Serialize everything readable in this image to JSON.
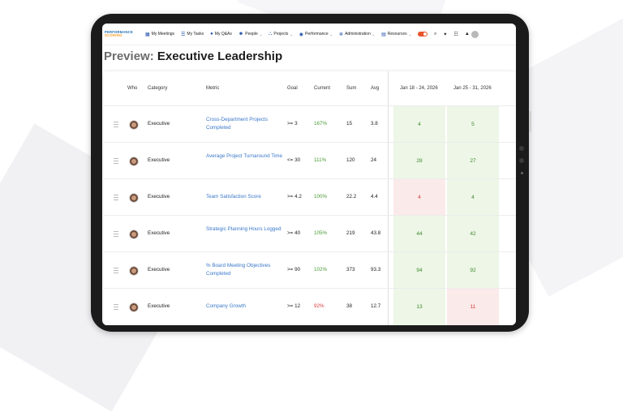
{
  "nav": {
    "logo_top": "PERFORMANCE",
    "logo_bottom": "SCORING",
    "items": [
      {
        "icon": "calendar-icon",
        "glyph": "▦",
        "label": "My Meetings"
      },
      {
        "icon": "list-icon",
        "glyph": "☰",
        "label": "My Tasks"
      },
      {
        "icon": "pin-icon",
        "glyph": "●",
        "label": "My Q&As"
      },
      {
        "icon": "people-icon",
        "glyph": "☻",
        "label": "People"
      },
      {
        "icon": "projects-icon",
        "glyph": "⛬",
        "label": "Projects"
      },
      {
        "icon": "performance-icon",
        "glyph": "◉",
        "label": "Performance"
      },
      {
        "icon": "gear-icon",
        "glyph": "✲",
        "label": "Administration"
      },
      {
        "icon": "resources-icon",
        "glyph": "▤",
        "label": "Resources"
      }
    ]
  },
  "page": {
    "title_prefix": "Preview:",
    "title": "Executive Leadership"
  },
  "table": {
    "headers": {
      "who": "Who",
      "category": "Category",
      "metric": "Metric",
      "goal": "Goal",
      "current": "Current",
      "sum": "Sum",
      "avg": "Avg",
      "week1": "Jan 18 - 24, 2026",
      "week2": "Jan 25 - 31, 2026"
    },
    "rows": [
      {
        "category": "Executive",
        "metric": "Cross-Department Projects Completed",
        "goal": ">= 3",
        "current": "167%",
        "current_status": "green",
        "sum": "15",
        "avg": "3.8",
        "w1": "4",
        "w1_status": "green",
        "w2": "5",
        "w2_status": "green"
      },
      {
        "category": "Executive",
        "metric": "Average Project Turnaround Time",
        "goal": "<= 30",
        "current": "111%",
        "current_status": "green",
        "sum": "120",
        "avg": "24",
        "w1": "28",
        "w1_status": "green",
        "w2": "27",
        "w2_status": "green"
      },
      {
        "category": "Executive",
        "metric": "Team Satisfaction Score",
        "goal": ">= 4.2",
        "current": "100%",
        "current_status": "green",
        "sum": "22.2",
        "avg": "4.4",
        "w1": "4",
        "w1_status": "red",
        "w2": "4",
        "w2_status": "green"
      },
      {
        "category": "Executive",
        "metric": "Strategic Planning Hours Logged",
        "goal": ">= 40",
        "current": "105%",
        "current_status": "green",
        "sum": "219",
        "avg": "43.8",
        "w1": "44",
        "w1_status": "green",
        "w2": "42",
        "w2_status": "green"
      },
      {
        "category": "Executive",
        "metric": "% Board Meeting Objectives Completed",
        "goal": ">= 90",
        "current": "102%",
        "current_status": "green",
        "sum": "373",
        "avg": "93.3",
        "w1": "94",
        "w1_status": "green",
        "w2": "92",
        "w2_status": "green"
      },
      {
        "category": "Executive",
        "metric": "Company Growth",
        "goal": ">= 12",
        "current": "92%",
        "current_status": "red",
        "sum": "38",
        "avg": "12.7",
        "w1": "13",
        "w1_status": "green",
        "w2": "11",
        "w2_status": "red"
      }
    ]
  },
  "colors": {
    "accent": "#1f4ea8",
    "green": "#4a9b35",
    "red": "#d63a3a",
    "toggle": "#e8542c"
  }
}
